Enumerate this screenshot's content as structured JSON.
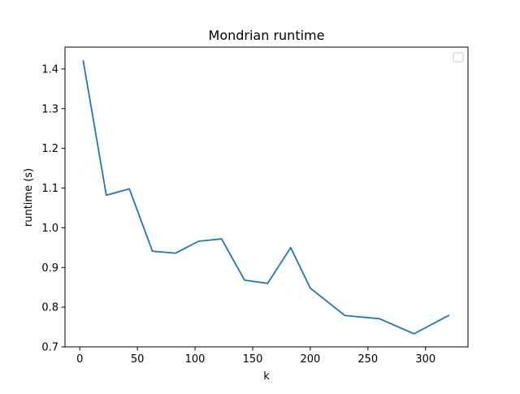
{
  "chart_data": {
    "type": "line",
    "title": "Mondrian runtime",
    "xlabel": "k",
    "ylabel": "runtime (s)",
    "xlim": [
      -12.85,
      336.85
    ],
    "ylim": [
      0.7,
      1.455
    ],
    "xticks": [
      0,
      50,
      100,
      150,
      200,
      250,
      300
    ],
    "yticks": [
      0.7,
      0.8,
      0.9,
      1.0,
      1.1,
      1.2,
      1.3,
      1.4
    ],
    "ytick_labels": [
      "0.7",
      "0.8",
      "0.9",
      "1.0",
      "1.1",
      "1.2",
      "1.3",
      "1.4"
    ],
    "grid": false,
    "legend": {
      "placement": "top-right",
      "entries": []
    },
    "series": [
      {
        "color": "#1f77b4",
        "x": [
          3,
          23,
          43,
          63,
          83,
          103,
          123,
          143,
          163,
          183,
          200,
          230,
          260,
          290,
          320
        ],
        "y": [
          1.42,
          1.082,
          1.098,
          0.941,
          0.936,
          0.966,
          0.972,
          0.868,
          0.86,
          0.95,
          0.848,
          0.779,
          0.771,
          0.733,
          0.779
        ]
      }
    ]
  }
}
